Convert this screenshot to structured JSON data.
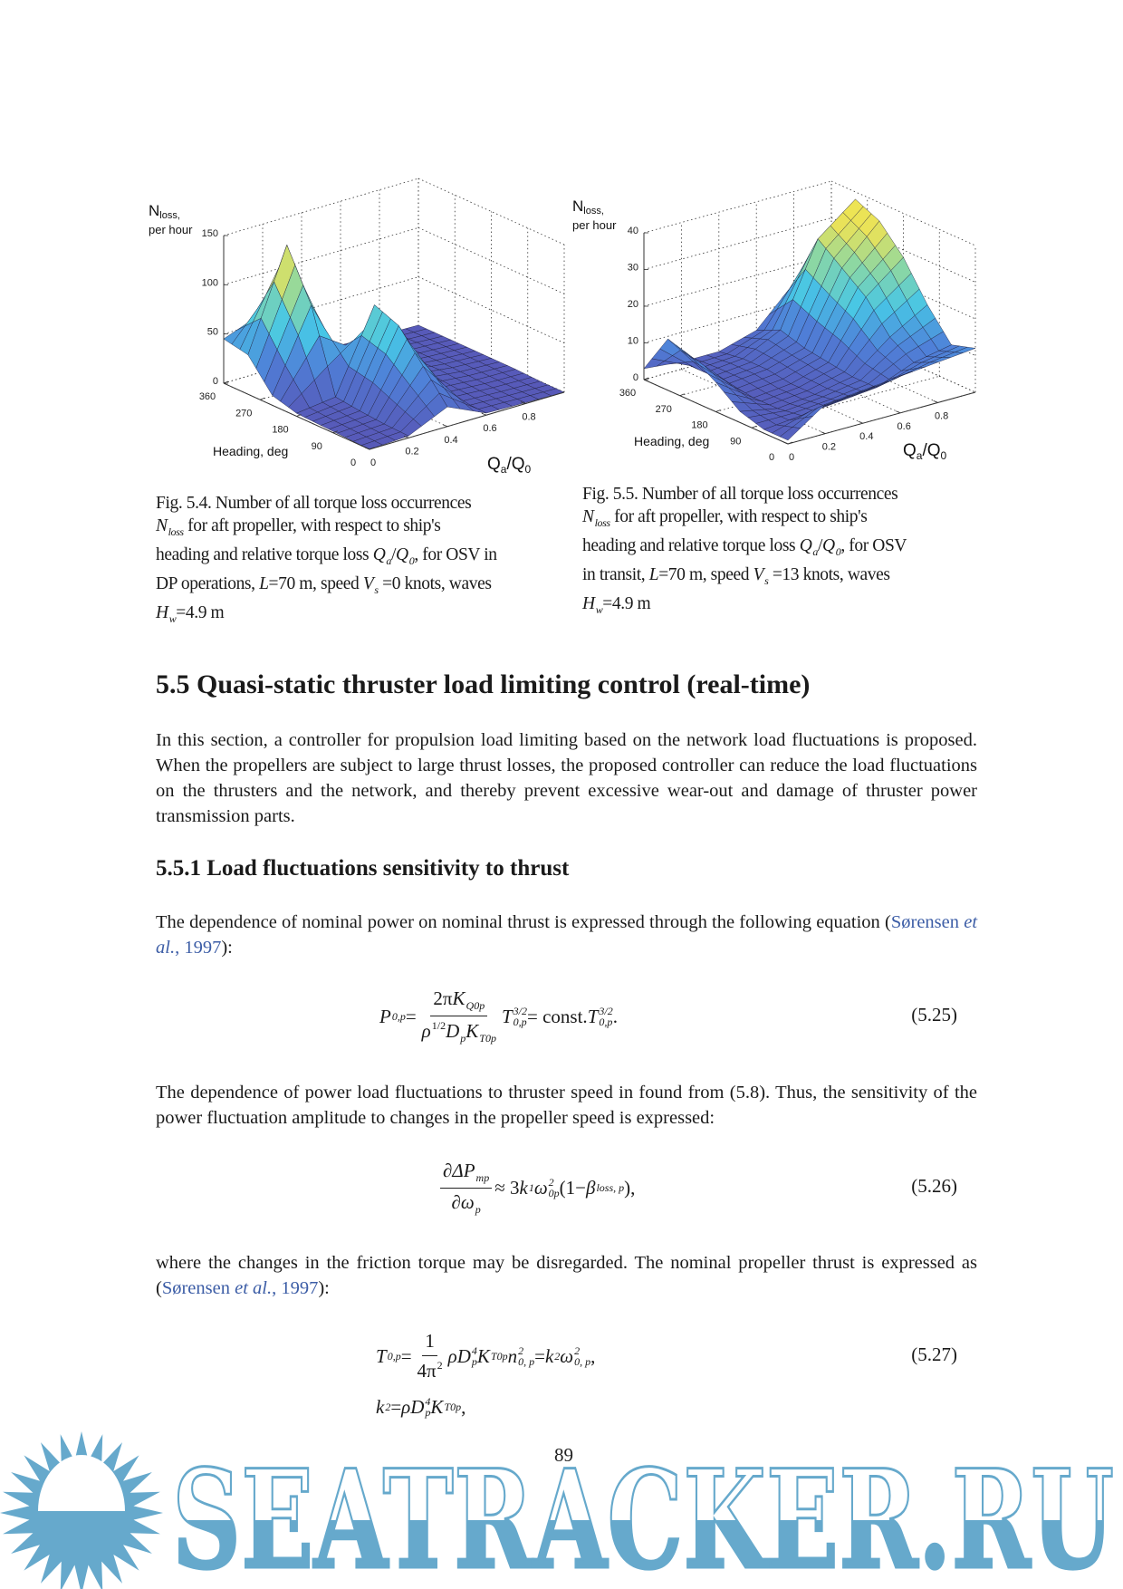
{
  "figures": [
    {
      "caption_lines": [
        [
          {
            "t": "Fig. 5.4. Number of all torque loss occurrences"
          }
        ],
        [
          {
            "t": "N",
            "i": true,
            "sub": "loss"
          },
          {
            "t": "  for aft propeller, with respect to ship's"
          }
        ],
        [
          {
            "t": "heading and relative torque loss "
          },
          {
            "t": "Q",
            "i": true,
            "sub": "a"
          },
          {
            "t": "/"
          },
          {
            "t": "Q",
            "i": true,
            "sub": "0"
          },
          {
            "t": ", for OSV in"
          }
        ],
        [
          {
            "t": "DP operations, "
          },
          {
            "t": "L",
            "i": true
          },
          {
            "t": "=70 m, speed "
          },
          {
            "t": "V",
            "i": true,
            "sub": "s"
          },
          {
            "t": " =0 knots, waves"
          }
        ],
        [
          {
            "t": "H",
            "i": true,
            "sub": "w"
          },
          {
            "t": "=4.9 m"
          }
        ]
      ]
    },
    {
      "caption_lines": [
        [
          {
            "t": "Fig. 5.5. Number of all torque loss occurrences"
          }
        ],
        [
          {
            "t": "N",
            "i": true,
            "sub": "loss"
          },
          {
            "t": "  for aft propeller, with respect to ship's"
          }
        ],
        [
          {
            "t": "heading and relative torque loss "
          },
          {
            "t": "Q",
            "i": true,
            "sub": "a"
          },
          {
            "t": "/"
          },
          {
            "t": "Q",
            "i": true,
            "sub": "0"
          },
          {
            "t": ", for OSV"
          }
        ],
        [
          {
            "t": "in transit, "
          },
          {
            "t": "L",
            "i": true
          },
          {
            "t": "=70 m, speed "
          },
          {
            "t": "V",
            "i": true,
            "sub": "s"
          },
          {
            "t": " =13 knots, waves"
          }
        ],
        [
          {
            "t": "H",
            "i": true,
            "sub": "w"
          },
          {
            "t": "=4.9 m"
          }
        ]
      ]
    }
  ],
  "chart_data": [
    {
      "type": "surface",
      "zlabel": {
        "main": "N",
        "sub": "loss,",
        "line2": "per hour"
      },
      "xlabel": "Heading, deg",
      "ylabel": {
        "q": "Q",
        "qsub": "a",
        "sep": "/",
        "q0": "Q",
        "q0sub": "0"
      },
      "heading": [
        0,
        60,
        120,
        180,
        240,
        300,
        360
      ],
      "q_ratio": [
        0,
        0.2,
        0.4,
        0.6,
        0.8,
        1.0
      ],
      "z": [
        [
          0,
          2,
          20,
          2,
          1,
          0
        ],
        [
          1,
          3,
          50,
          3,
          1,
          0
        ],
        [
          2,
          5,
          80,
          5,
          2,
          1
        ],
        [
          3,
          8,
          90,
          8,
          3,
          1
        ],
        [
          10,
          90,
          10,
          6,
          3,
          1
        ],
        [
          40,
          140,
          15,
          5,
          3,
          1
        ],
        [
          45,
          60,
          10,
          4,
          2,
          1
        ]
      ],
      "zlim": [
        0,
        150
      ],
      "z_ticks": [
        "0",
        "50",
        "100",
        "150"
      ],
      "heading_ticks": [
        "0",
        "90",
        "180",
        "270",
        "360"
      ],
      "q_ticks": [
        "0",
        "0.2",
        "0.4",
        "0.6",
        "0.8"
      ],
      "grid": true
    },
    {
      "type": "surface",
      "zlabel": {
        "main": "N",
        "sub": "loss,",
        "line2": "per hour"
      },
      "xlabel": "Heading, deg",
      "ylabel": {
        "q": "Q",
        "qsub": "a",
        "sep": "/",
        "q0": "Q",
        "q0sub": "0"
      },
      "heading": [
        0,
        60,
        120,
        180,
        240,
        300,
        360
      ],
      "q_ratio": [
        0,
        0.2,
        0.4,
        0.6,
        0.8,
        1.0
      ],
      "z": [
        [
          1,
          8,
          9,
          10,
          11,
          12
        ],
        [
          1,
          2,
          3,
          4,
          8,
          10
        ],
        [
          3,
          1,
          2,
          4,
          12,
          18
        ],
        [
          8,
          1,
          2,
          5,
          20,
          28
        ],
        [
          12,
          2,
          3,
          6,
          25,
          35
        ],
        [
          14,
          2,
          3,
          8,
          30,
          38
        ],
        [
          3,
          2,
          2,
          5,
          15,
          20
        ]
      ],
      "zlim": [
        0,
        40
      ],
      "z_ticks": [
        "0",
        "10",
        "20",
        "30",
        "40"
      ],
      "heading_ticks": [
        "0",
        "90",
        "180",
        "270",
        "360"
      ],
      "q_ticks": [
        "0",
        "0.2",
        "0.4",
        "0.6",
        "0.8"
      ],
      "grid": true
    }
  ],
  "section": {
    "title": "5.5 Quasi-static thruster load limiting control (real-time)",
    "intro": [
      {
        "t": "In this section, a controller for propulsion load limiting based on the network load fluctuations is proposed. When the propellers are subject to large thrust losses, the proposed controller can reduce the load fluctuations on the thrusters and the network, and thereby prevent excessive wear-out and damage of thruster power transmission parts."
      }
    ]
  },
  "subsection": {
    "title": "5.5.1 Load fluctuations sensitivity to thrust",
    "p1": [
      {
        "t": "The dependence of nominal power on nominal thrust is expressed through the following equation ("
      },
      {
        "t": "Sørensen ",
        "link": true
      },
      {
        "t": "et al.",
        "link": true,
        "i": true
      },
      {
        "t": ", 1997",
        "link": true
      },
      {
        "t": "):"
      }
    ],
    "p2": [
      {
        "t": "The dependence of power load fluctuations to thruster speed in found from (5.8). Thus, the sensitivity of the power fluctuation amplitude to changes in the propeller speed is expressed:"
      }
    ],
    "p3": [
      {
        "t": "where the changes in the friction torque may be disregarded. The nominal propeller thrust is expressed as ("
      },
      {
        "t": "Sørensen ",
        "link": true
      },
      {
        "t": "et al.",
        "link": true,
        "i": true
      },
      {
        "t": ", 1997",
        "link": true
      },
      {
        "t": "):"
      }
    ]
  },
  "equations": {
    "eq525": {
      "number": "(5.25)",
      "tokens": [
        {
          "t": "P",
          "i": true,
          "sub": "0,p"
        },
        {
          "t": " = "
        },
        {
          "frac": {
            "num": [
              {
                "t": "2π"
              },
              {
                "t": "K",
                "i": true,
                "sub": "Q0p"
              }
            ],
            "den": [
              {
                "t": "ρ",
                "i": true,
                "sup": "1/2"
              },
              {
                "t": "D",
                "i": true,
                "sub": "p"
              },
              {
                "t": "K",
                "i": true,
                "sub": "T0p"
              }
            ]
          }
        },
        {
          "t": "T",
          "i": true,
          "sub": "0,p",
          "sup": "3/2"
        },
        {
          "t": " = const. "
        },
        {
          "t": "T",
          "i": true,
          "sub": "0,p",
          "sup": "3/2"
        },
        {
          "t": " ."
        }
      ]
    },
    "eq526": {
      "number": "(5.26)",
      "tokens": [
        {
          "frac": {
            "num": [
              {
                "t": "∂ΔP",
                "i": true,
                "sub": "mp"
              }
            ],
            "den": [
              {
                "t": "∂ω",
                "i": true,
                "sub": "p"
              }
            ]
          }
        },
        {
          "t": " ≈ 3  "
        },
        {
          "t": "k",
          "i": true,
          "sub": "1"
        },
        {
          "t": "ω",
          "i": true,
          "sup": "2",
          "sub": "0p"
        },
        {
          "t": " (1− "
        },
        {
          "t": "β",
          "i": true,
          "sub": "loss, p"
        },
        {
          "t": " ),"
        }
      ]
    },
    "eq527": {
      "number": "(5.27)",
      "tokens": [
        {
          "t": "T",
          "i": true,
          "sub": "0,p"
        },
        {
          "t": " = "
        },
        {
          "frac": {
            "num": [
              {
                "t": "1"
              }
            ],
            "den": [
              {
                "t": "4π"
              },
              {
                "t": "",
                "sup": "2"
              }
            ]
          }
        },
        {
          "t": "ρD",
          "i": true,
          "sup": "4",
          "sub": "p"
        },
        {
          "t": "K",
          "i": true,
          "sub": "T0p"
        },
        {
          "t": "n",
          "i": true,
          "sup": "2",
          "sub": "0, p"
        },
        {
          "t": " = "
        },
        {
          "t": "k",
          "i": true,
          "sub": "2"
        },
        {
          "t": "ω",
          "i": true,
          "sup": "2",
          "sub": "0, p"
        },
        {
          "t": " ,"
        }
      ]
    },
    "eq527b": {
      "tokens": [
        {
          "t": "k",
          "i": true,
          "sub": "2"
        },
        {
          "t": " = "
        },
        {
          "t": "ρD",
          "i": true,
          "sup": "4",
          "sub": "p"
        },
        {
          "t": "K",
          "i": true,
          "sub": "T0p"
        },
        {
          "t": " ,"
        }
      ]
    }
  },
  "page_number": "89",
  "watermark": {
    "text": "SEATRACKER.RU",
    "color": "#66a9cc"
  },
  "colors": {
    "link": "#3c5da6",
    "surface_low": "#5759b8",
    "surface_mid": "#47c6e6",
    "surface_high": "#e8e25a"
  }
}
